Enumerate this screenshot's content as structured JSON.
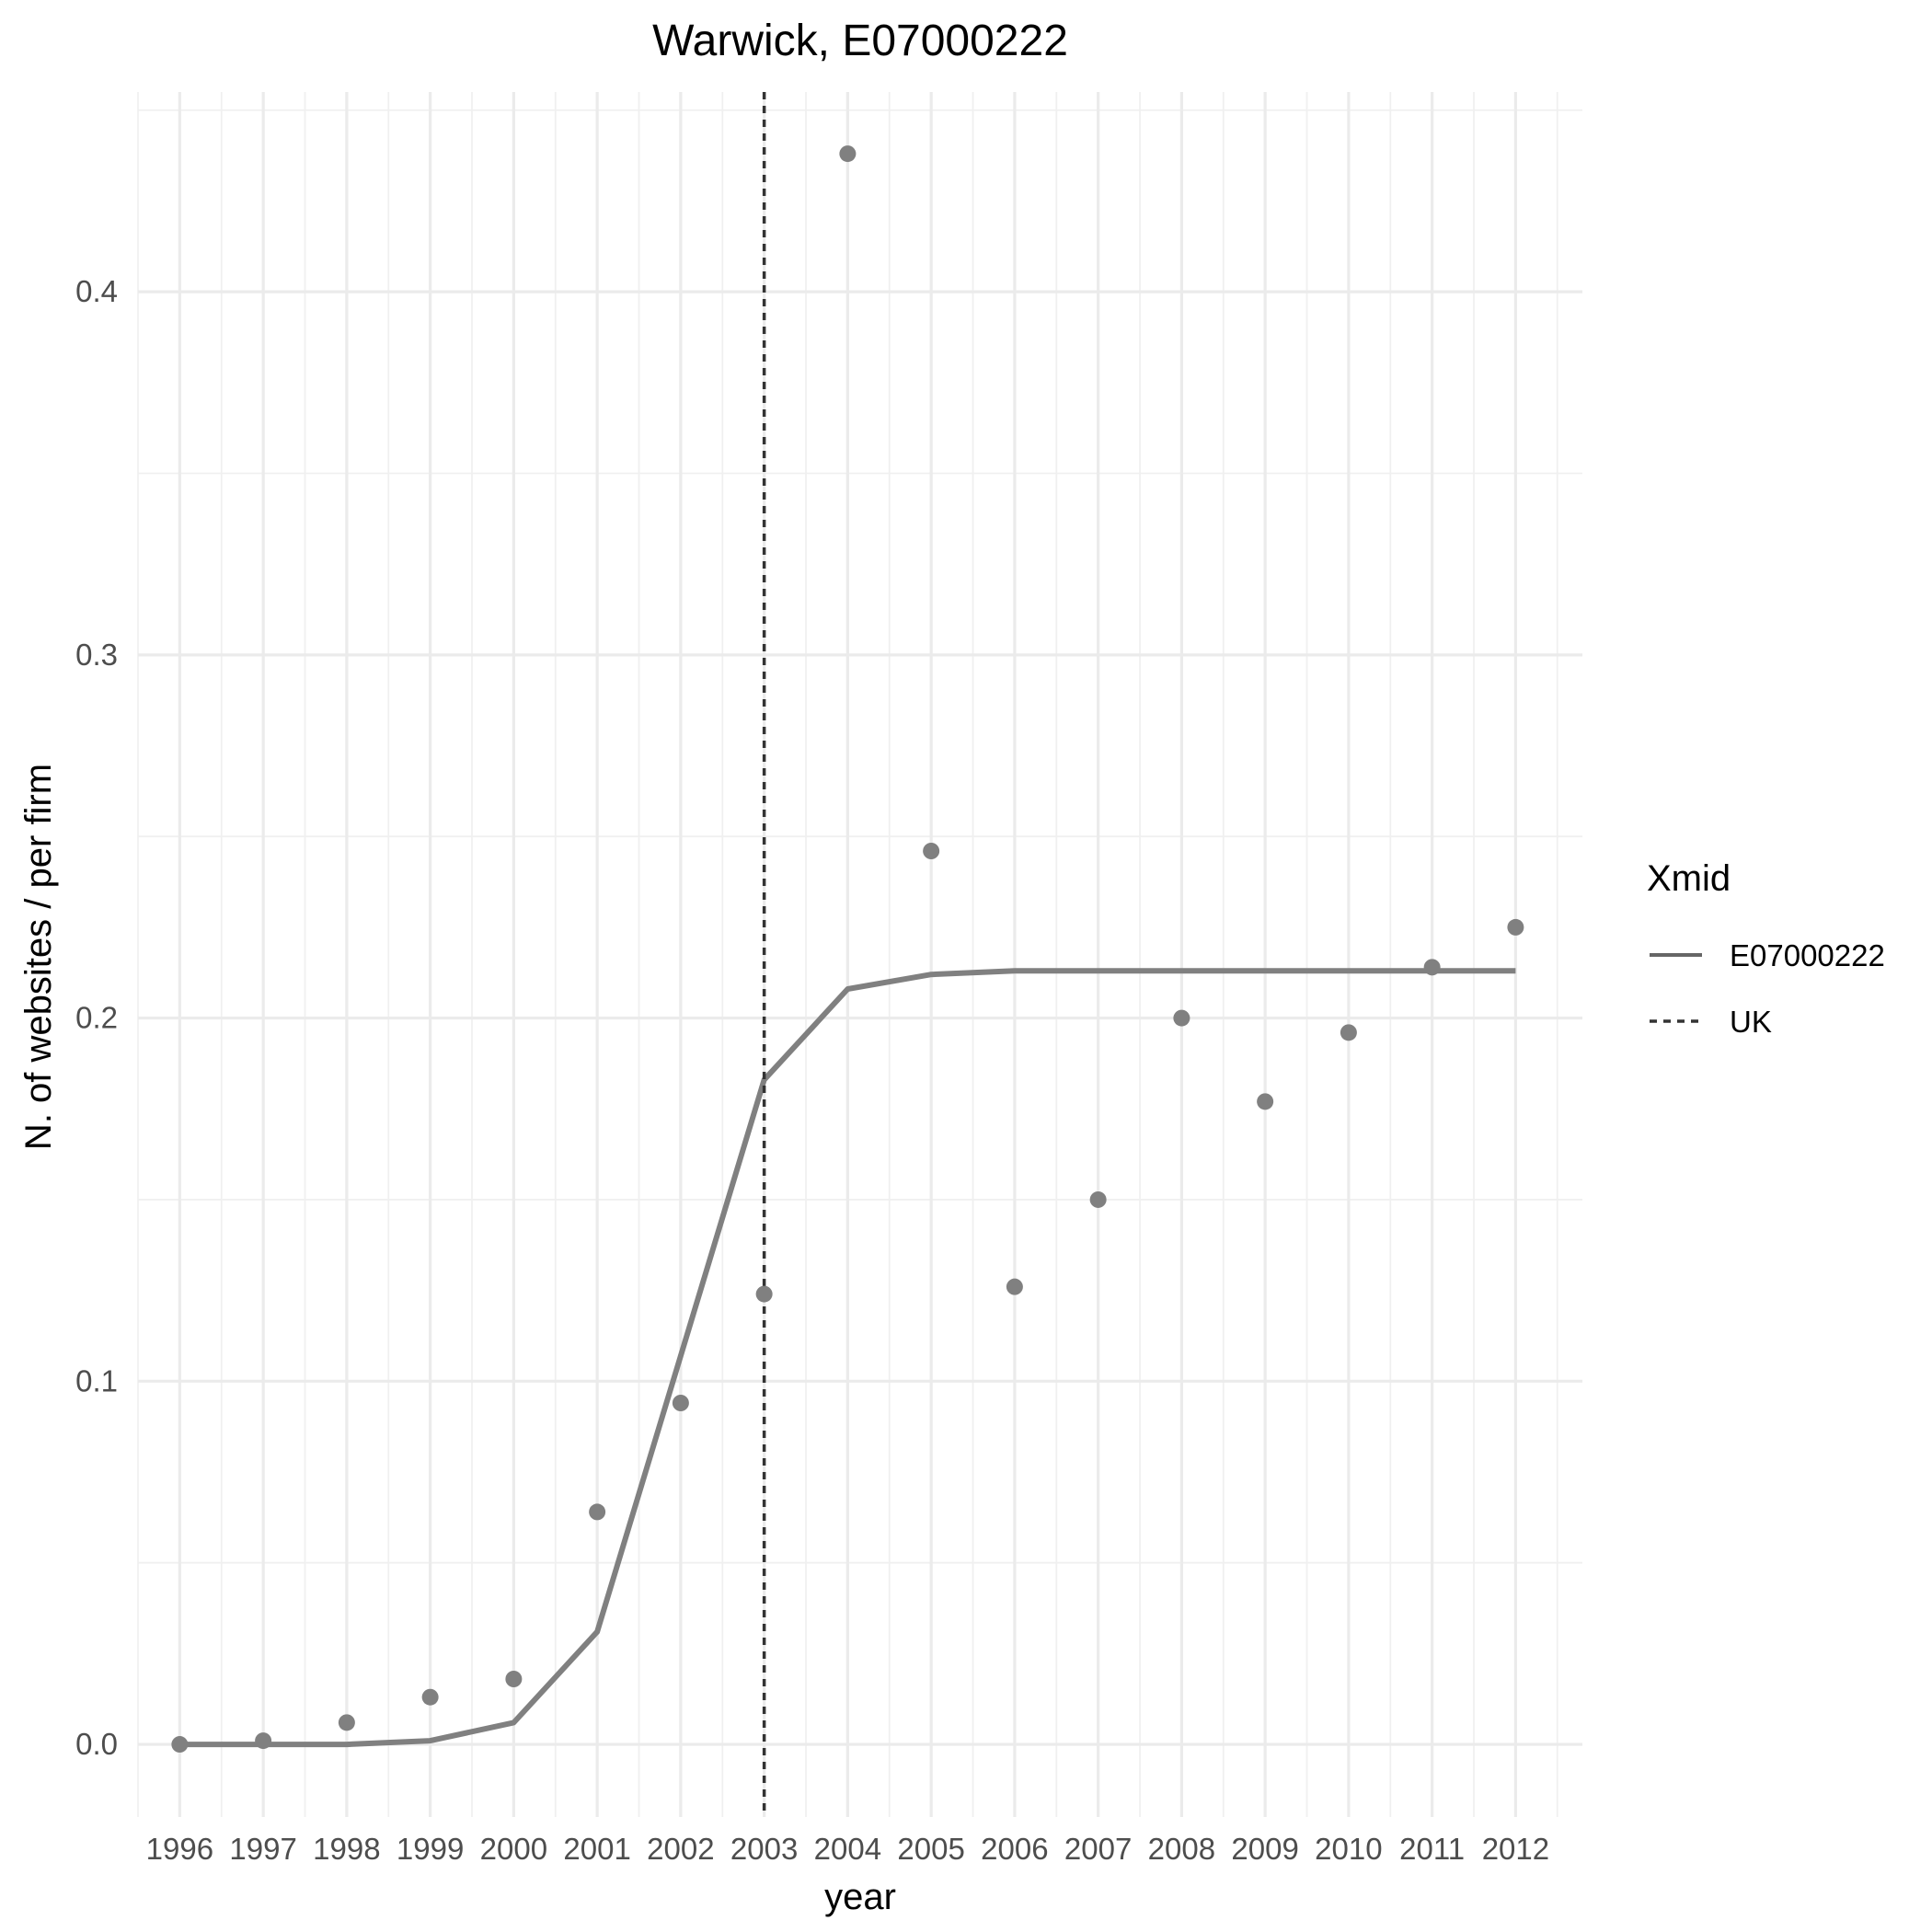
{
  "chart_data": {
    "type": "line",
    "title": "Warwick, E07000222",
    "xlabel": "year",
    "ylabel": "N. of websites / per firm",
    "x": [
      1996,
      1997,
      1998,
      1999,
      2000,
      2001,
      2002,
      2003,
      2004,
      2005,
      2006,
      2007,
      2008,
      2009,
      2010,
      2011,
      2012
    ],
    "x_tick_labels": [
      "1996",
      "1997",
      "1998",
      "1999",
      "2000",
      "2001",
      "2002",
      "2003",
      "2004",
      "2005",
      "2006",
      "2007",
      "2008",
      "2009",
      "2010",
      "2011",
      "2012"
    ],
    "y_ticks": [
      0.0,
      0.1,
      0.2,
      0.3,
      0.4
    ],
    "y_tick_labels": [
      "0.0",
      "0.1",
      "0.2",
      "0.3",
      "0.4"
    ],
    "xlim": [
      1995.5,
      2012.8
    ],
    "ylim": [
      -0.02,
      0.455
    ],
    "grid": true,
    "series": [
      {
        "name": "E07000222",
        "kind": "line",
        "style": "solid",
        "color": "#808080",
        "values": [
          0.0,
          0.0,
          0.0,
          0.001,
          0.006,
          0.031,
          0.107,
          0.183,
          0.208,
          0.212,
          0.213,
          0.213,
          0.213,
          0.213,
          0.213,
          0.213,
          0.213
        ]
      },
      {
        "kind": "scatter",
        "color": "#808080",
        "values": [
          0.0,
          0.001,
          0.006,
          0.013,
          0.018,
          0.064,
          0.094,
          0.124,
          0.438,
          0.246,
          0.126,
          0.15,
          0.2,
          0.177,
          0.196,
          0.214,
          0.225
        ]
      }
    ],
    "vline": {
      "x": 2003,
      "style": "dashed",
      "color": "#333333",
      "legend": "UK"
    },
    "legend": {
      "title": "Xmid",
      "position": "right",
      "entries": [
        {
          "label": "E07000222",
          "style": "solid"
        },
        {
          "label": "UK",
          "style": "dashed"
        }
      ]
    }
  }
}
